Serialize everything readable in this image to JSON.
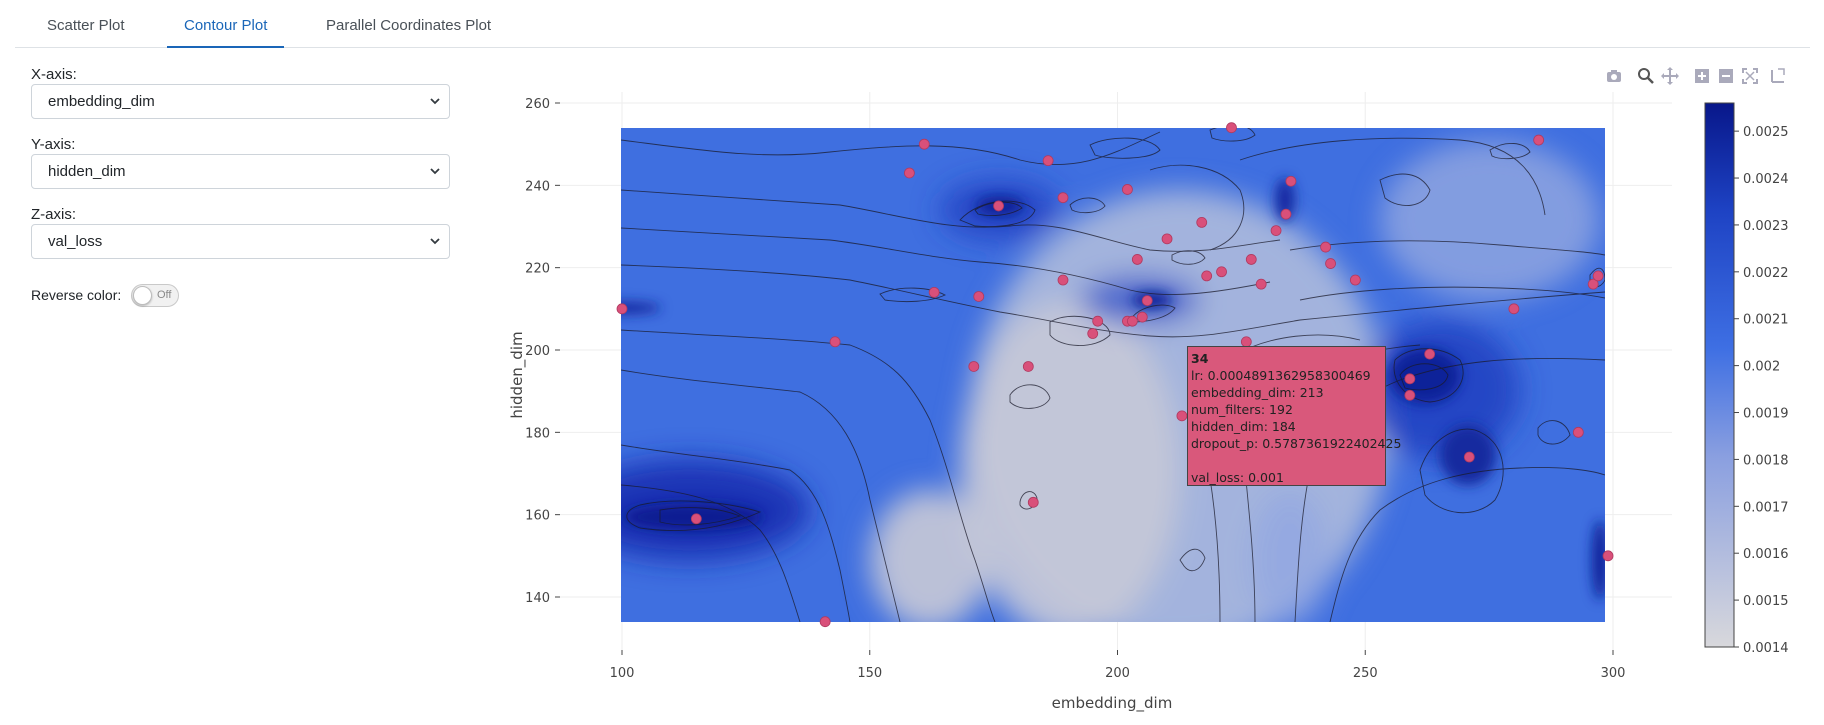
{
  "tabs": [
    {
      "label": "Scatter Plot",
      "active": false
    },
    {
      "label": "Contour Plot",
      "active": true
    },
    {
      "label": "Parallel Coordinates Plot",
      "active": false
    }
  ],
  "controls": {
    "x_label": "X-axis:",
    "x_value": "embedding_dim",
    "y_label": "Y-axis:",
    "y_value": "hidden_dim",
    "z_label": "Z-axis:",
    "z_value": "val_loss",
    "reverse_label": "Reverse color:",
    "reverse_state": "Off"
  },
  "modebar": [
    "camera-icon",
    "zoom-icon",
    "pan-icon",
    "zoom-in-icon",
    "zoom-out-icon",
    "autoscale-icon",
    "reset-axes-icon"
  ],
  "hover": {
    "trial": "34",
    "lr": "lr: 0.0004891362958300469",
    "embedding_dim": "embedding_dim: 213",
    "num_filters": "num_filters: 192",
    "hidden_dim": "hidden_dim: 184",
    "dropout_p": "dropout_p: 0.5787361922402425",
    "val_loss": "val_loss: 0.001"
  },
  "chart_data": {
    "type": "contour",
    "xlabel": "embedding_dim",
    "ylabel": "hidden_dim",
    "xlim": [
      100,
      300
    ],
    "ylim": [
      134,
      254
    ],
    "x_ticks": [
      100,
      150,
      200,
      250,
      300
    ],
    "y_ticks": [
      140,
      160,
      180,
      200,
      220,
      240,
      260
    ],
    "grid": true,
    "colorscale": {
      "low_color": "#d2d2d8",
      "mid_color": "#3d6fe0",
      "high_color": "#081c8c",
      "ticks": [
        "0.0014",
        "0.0015",
        "0.0016",
        "0.0017",
        "0.0018",
        "0.0019",
        "0.002",
        "0.0021",
        "0.0022",
        "0.0023",
        "0.0024",
        "0.0025"
      ],
      "range": [
        0.0014,
        0.00256
      ]
    },
    "trial_points": [
      [
        100,
        210
      ],
      [
        115,
        159
      ],
      [
        141,
        134
      ],
      [
        143,
        202
      ],
      [
        158,
        243
      ],
      [
        161,
        250
      ],
      [
        163,
        214
      ],
      [
        171,
        196
      ],
      [
        172,
        213
      ],
      [
        176,
        235
      ],
      [
        182,
        196
      ],
      [
        183,
        163
      ],
      [
        186,
        246
      ],
      [
        189,
        217
      ],
      [
        189,
        237
      ],
      [
        195,
        204
      ],
      [
        196,
        207
      ],
      [
        202,
        239
      ],
      [
        202,
        207
      ],
      [
        203,
        207
      ],
      [
        204,
        222
      ],
      [
        205,
        208
      ],
      [
        206,
        212
      ],
      [
        210,
        227
      ],
      [
        213,
        184
      ],
      [
        217,
        231
      ],
      [
        218,
        218
      ],
      [
        221,
        219
      ],
      [
        223,
        254
      ],
      [
        226,
        202
      ],
      [
        227,
        222
      ],
      [
        229,
        216
      ],
      [
        232,
        229
      ],
      [
        234,
        233
      ],
      [
        235,
        241
      ],
      [
        242,
        225
      ],
      [
        243,
        221
      ],
      [
        248,
        217
      ],
      [
        259,
        189
      ],
      [
        259,
        193
      ],
      [
        263,
        199
      ],
      [
        271,
        174
      ],
      [
        280,
        210
      ],
      [
        285,
        251
      ],
      [
        293,
        180
      ],
      [
        296,
        216
      ],
      [
        297,
        218
      ],
      [
        299,
        150
      ]
    ]
  }
}
